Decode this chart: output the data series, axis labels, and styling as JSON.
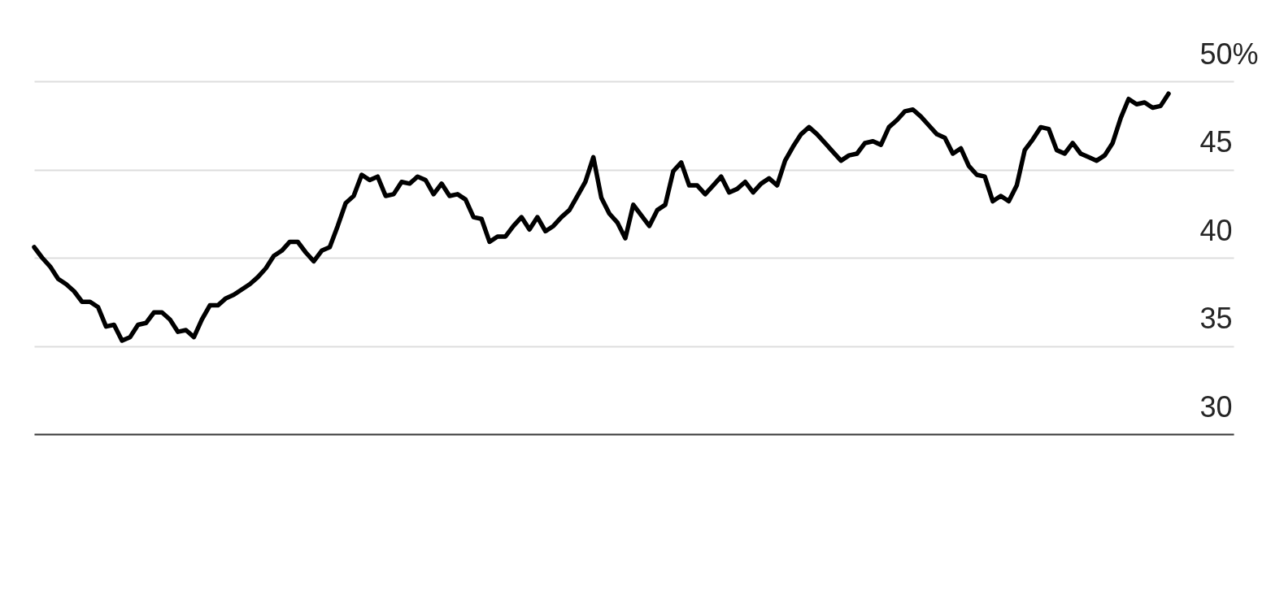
{
  "chart_data": {
    "type": "line",
    "categories": [
      null,
      null,
      null,
      null,
      null,
      null,
      null,
      null,
      null,
      null,
      null,
      null,
      null,
      null,
      null,
      null,
      null,
      null,
      null,
      null,
      null,
      null,
      null,
      null,
      null,
      null,
      null,
      null,
      null,
      null,
      null,
      null,
      null,
      null,
      null,
      null,
      null,
      null,
      null,
      null,
      null,
      null,
      null,
      null,
      null,
      null,
      null,
      null,
      null,
      null,
      null,
      null,
      null,
      null,
      null,
      null,
      null,
      null,
      null,
      null,
      null,
      null,
      null,
      null,
      null,
      null,
      null,
      null,
      null,
      null,
      null,
      null,
      null,
      null,
      null,
      null,
      null,
      null,
      null,
      null,
      null,
      null,
      null,
      null,
      null,
      null,
      null,
      null,
      null,
      null,
      null,
      null,
      null,
      null,
      null,
      null,
      null,
      null,
      null,
      null,
      null,
      null,
      null,
      null,
      null,
      null,
      null,
      null,
      null,
      null,
      null,
      null,
      null,
      null,
      null,
      null,
      null,
      null,
      null,
      null,
      null,
      null,
      null,
      null,
      null,
      null,
      null,
      null,
      null,
      null,
      null,
      null,
      null,
      null,
      null,
      null,
      null,
      null,
      null,
      null,
      null,
      null,
      null
    ],
    "series": [
      {
        "color": "#000000",
        "values": [
          40.6,
          40.0,
          39.5,
          38.8,
          38.5,
          38.1,
          37.5,
          37.5,
          37.2,
          36.1,
          36.2,
          35.3,
          35.5,
          36.2,
          36.3,
          36.9,
          36.9,
          36.5,
          35.8,
          35.9,
          35.5,
          36.5,
          37.3,
          37.3,
          37.7,
          37.9,
          38.2,
          38.5,
          38.9,
          39.4,
          40.1,
          40.4,
          40.9,
          40.9,
          40.3,
          39.8,
          40.4,
          40.6,
          41.8,
          43.1,
          43.5,
          44.7,
          44.4,
          44.6,
          43.5,
          43.6,
          44.3,
          44.2,
          44.6,
          44.4,
          43.6,
          44.2,
          43.5,
          43.6,
          43.3,
          42.3,
          42.2,
          40.9,
          41.2,
          41.2,
          41.8,
          42.3,
          41.6,
          42.3,
          41.5,
          41.8,
          42.3,
          42.7,
          43.5,
          44.3,
          45.7,
          43.4,
          42.5,
          42.0,
          41.1,
          43.0,
          42.4,
          41.8,
          42.7,
          43.0,
          44.9,
          45.4,
          44.1,
          44.1,
          43.6,
          44.1,
          44.6,
          43.7,
          43.9,
          44.3,
          43.7,
          44.2,
          44.5,
          44.1,
          45.5,
          46.3,
          47.0,
          47.4,
          47.0,
          46.5,
          46.0,
          45.5,
          45.8,
          45.9,
          46.5,
          46.6,
          46.4,
          47.4,
          47.8,
          48.3,
          48.4,
          48.0,
          47.5,
          47.0,
          46.8,
          45.9,
          46.2,
          45.2,
          44.7,
          44.6,
          43.2,
          43.5,
          43.2,
          44.1,
          46.1,
          46.7,
          47.4,
          47.3,
          46.1,
          45.9,
          46.5,
          45.9,
          45.7,
          45.5,
          45.8,
          46.5,
          47.9,
          49.0,
          48.7,
          48.8,
          48.5,
          48.6,
          49.3
        ]
      }
    ],
    "ylim": [
      30,
      50
    ],
    "yticks": [
      30,
      35,
      40,
      45,
      {
        "value": 50,
        "label": "50%"
      }
    ],
    "grid": "y",
    "line_style": "solid"
  }
}
